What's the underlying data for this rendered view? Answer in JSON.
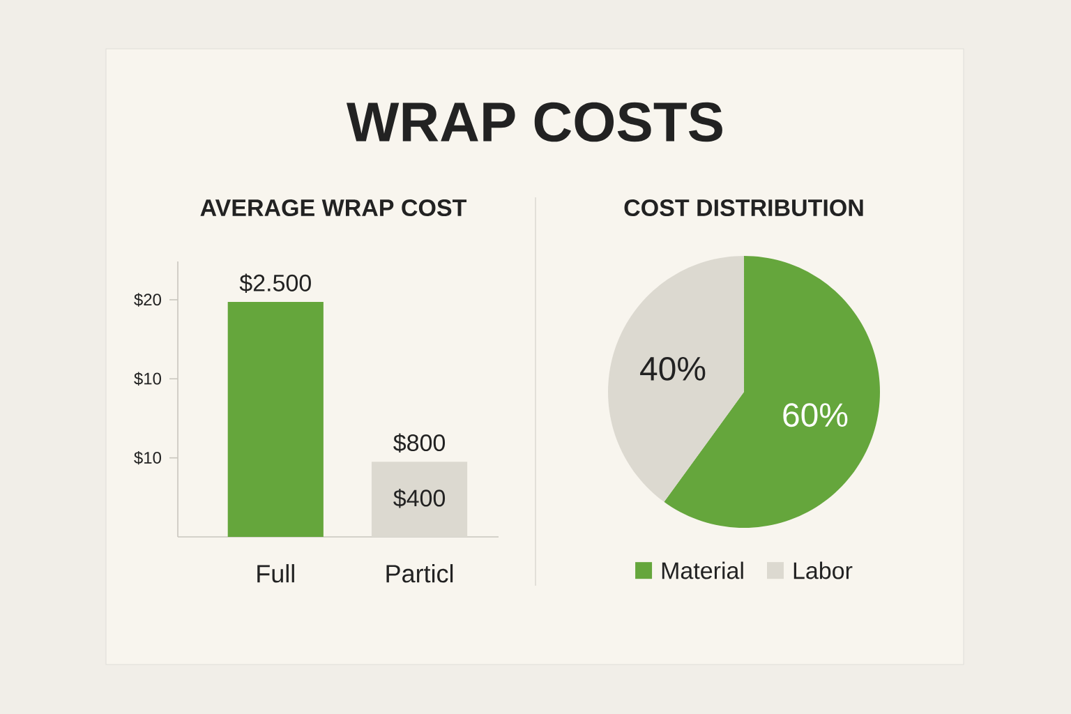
{
  "chart_data": [
    {
      "type": "bar",
      "title": "WRAP COSTS",
      "subtitle": "AVERAGE WRAP COST",
      "categories": [
        "Full",
        "Particl"
      ],
      "values": [
        2500,
        800
      ],
      "colors": [
        "#65a63c",
        "#dcd9d0"
      ],
      "value_labels": [
        "$2.500",
        "$800"
      ],
      "ylim": [
        0,
        2930
      ],
      "annotations": [
        "$20",
        "$10",
        "$10",
        "$400"
      ]
    },
    {
      "type": "pie",
      "title": "COST DISTRIBUTION",
      "categories": [
        "Material",
        "Labor"
      ],
      "values": [
        60,
        40
      ],
      "colors": [
        "#65a63c",
        "#dcd9d0"
      ],
      "value_labels": [
        "60%",
        "40%"
      ],
      "legend": "bottom"
    }
  ]
}
